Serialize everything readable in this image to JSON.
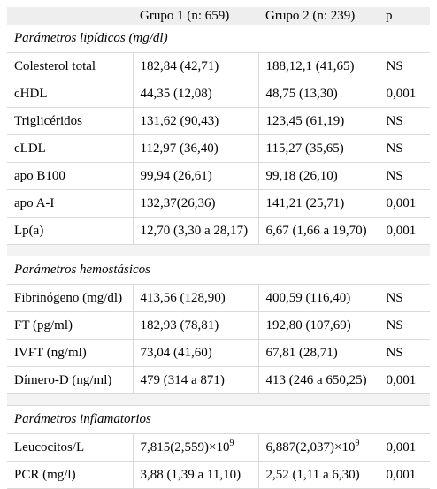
{
  "header": {
    "col_parameter": "",
    "col_group1": "Grupo 1 (n: 659)",
    "col_group2": "Grupo 2 (n: 239)",
    "col_p": "p"
  },
  "sections": [
    {
      "title": "Parámetros lipídicos (mg/dl)",
      "rows": [
        {
          "label": "Colesterol total",
          "g1": "182,84 (42,71)",
          "g2": "188,12,1 (41,65)",
          "p": "NS"
        },
        {
          "label": "cHDL",
          "g1": "44,35 (12,08)",
          "g2": "48,75 (13,30)",
          "p": "0,001"
        },
        {
          "label": "Triglicéridos",
          "g1": "131,62 (90,43)",
          "g2": "123,45 (61,19)",
          "p": "NS"
        },
        {
          "label": "cLDL",
          "g1": "112,97 (36,40)",
          "g2": "115,27 (35,65)",
          "p": "NS"
        },
        {
          "label": "apo B100",
          "g1": "99,94 (26,61)",
          "g2": "99,18 (26,10)",
          "p": "NS"
        },
        {
          "label": "apo A-I",
          "g1": "132,37(26,36)",
          "g2": "141,21 (25,71)",
          "p": "0,001"
        },
        {
          "label": "Lp(a)",
          "g1": "12,70 (3,30 a 28,17)",
          "g2": "6,67 (1,66 a 19,70)",
          "p": "0,001"
        }
      ]
    },
    {
      "title": "Parámetros hemostásicos",
      "rows": [
        {
          "label": "Fibrinógeno (mg/dl)",
          "g1": "413,56 (128,90)",
          "g2": "400,59 (116,40)",
          "p": "NS"
        },
        {
          "label": "FT (pg/ml)",
          "g1": "182,93 (78,81)",
          "g2": "192,80 (107,69)",
          "p": "NS"
        },
        {
          "label": "IVFT (ng/ml)",
          "g1": "73,04 (41,60)",
          "g2": "67,81 (28,71)",
          "p": "NS"
        },
        {
          "label": "Dímero-D (ng/ml)",
          "g1": "479 (314 a 871)",
          "g2": "413 (246 a 650,25)",
          "p": "0,001"
        }
      ]
    },
    {
      "title": "Parámetros inflamatorios",
      "rows": [
        {
          "label": "Leucocitos/L",
          "g1": "7,815(2,559)×10",
          "g1_sup": "9",
          "g2": "6,887(2,037)×10",
          "g2_sup": "9",
          "p": "0,001"
        },
        {
          "label": "PCR (mg/l)",
          "g1": "3,88 (1,39 a 11,10)",
          "g2": "2,52 (1,11 a 6,30)",
          "p": "0,001"
        }
      ]
    }
  ]
}
